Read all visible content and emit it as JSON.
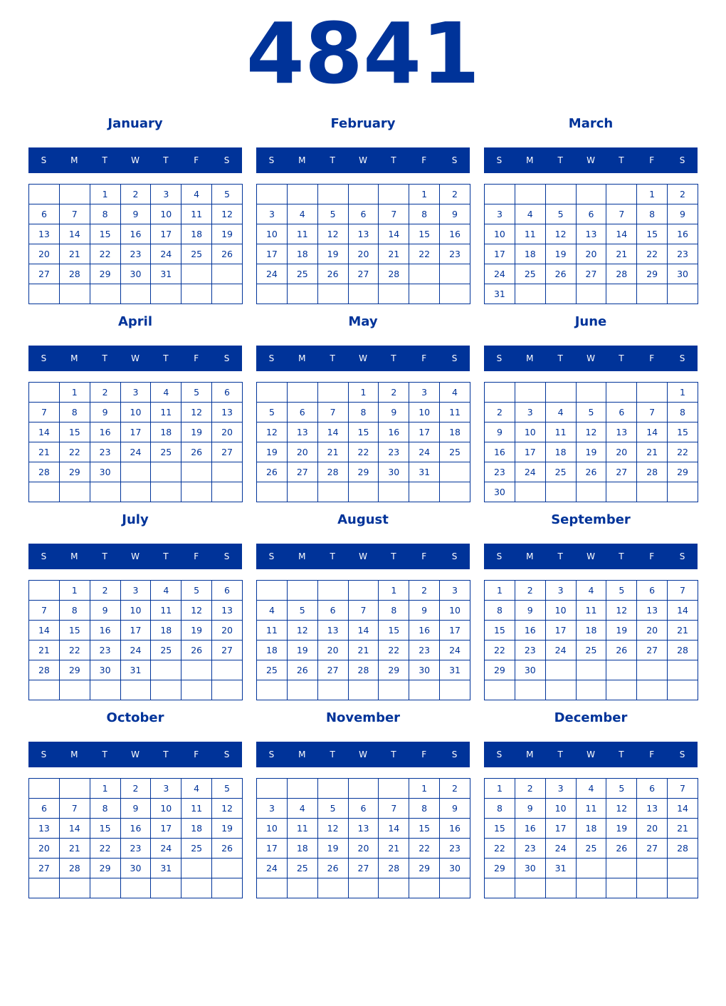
{
  "year": "4841",
  "weekdays": [
    "S",
    "M",
    "T",
    "W",
    "T",
    "F",
    "S"
  ],
  "accent_color": "#003399",
  "months": [
    {
      "name": "January",
      "weeks": [
        [
          null,
          null,
          1,
          2,
          3,
          4,
          5
        ],
        [
          6,
          7,
          8,
          9,
          10,
          11,
          12
        ],
        [
          13,
          14,
          15,
          16,
          17,
          18,
          19
        ],
        [
          20,
          21,
          22,
          23,
          24,
          25,
          26
        ],
        [
          27,
          28,
          29,
          30,
          31,
          null,
          null
        ],
        [
          null,
          null,
          null,
          null,
          null,
          null,
          null
        ]
      ]
    },
    {
      "name": "February",
      "weeks": [
        [
          null,
          null,
          null,
          null,
          null,
          1,
          2
        ],
        [
          3,
          4,
          5,
          6,
          7,
          8,
          9
        ],
        [
          10,
          11,
          12,
          13,
          14,
          15,
          16
        ],
        [
          17,
          18,
          19,
          20,
          21,
          22,
          23
        ],
        [
          24,
          25,
          26,
          27,
          28,
          null,
          null
        ],
        [
          null,
          null,
          null,
          null,
          null,
          null,
          null
        ]
      ]
    },
    {
      "name": "March",
      "weeks": [
        [
          null,
          null,
          null,
          null,
          null,
          1,
          2
        ],
        [
          3,
          4,
          5,
          6,
          7,
          8,
          9
        ],
        [
          10,
          11,
          12,
          13,
          14,
          15,
          16
        ],
        [
          17,
          18,
          19,
          20,
          21,
          22,
          23
        ],
        [
          24,
          25,
          26,
          27,
          28,
          29,
          30
        ],
        [
          31,
          null,
          null,
          null,
          null,
          null,
          null
        ]
      ]
    },
    {
      "name": "April",
      "weeks": [
        [
          null,
          1,
          2,
          3,
          4,
          5,
          6
        ],
        [
          7,
          8,
          9,
          10,
          11,
          12,
          13
        ],
        [
          14,
          15,
          16,
          17,
          18,
          19,
          20
        ],
        [
          21,
          22,
          23,
          24,
          25,
          26,
          27
        ],
        [
          28,
          29,
          30,
          null,
          null,
          null,
          null
        ],
        [
          null,
          null,
          null,
          null,
          null,
          null,
          null
        ]
      ]
    },
    {
      "name": "May",
      "weeks": [
        [
          null,
          null,
          null,
          1,
          2,
          3,
          4
        ],
        [
          5,
          6,
          7,
          8,
          9,
          10,
          11
        ],
        [
          12,
          13,
          14,
          15,
          16,
          17,
          18
        ],
        [
          19,
          20,
          21,
          22,
          23,
          24,
          25
        ],
        [
          26,
          27,
          28,
          29,
          30,
          31,
          null
        ],
        [
          null,
          null,
          null,
          null,
          null,
          null,
          null
        ]
      ]
    },
    {
      "name": "June",
      "weeks": [
        [
          null,
          null,
          null,
          null,
          null,
          null,
          1
        ],
        [
          2,
          3,
          4,
          5,
          6,
          7,
          8
        ],
        [
          9,
          10,
          11,
          12,
          13,
          14,
          15
        ],
        [
          16,
          17,
          18,
          19,
          20,
          21,
          22
        ],
        [
          23,
          24,
          25,
          26,
          27,
          28,
          29
        ],
        [
          30,
          null,
          null,
          null,
          null,
          null,
          null
        ]
      ]
    },
    {
      "name": "July",
      "weeks": [
        [
          null,
          1,
          2,
          3,
          4,
          5,
          6
        ],
        [
          7,
          8,
          9,
          10,
          11,
          12,
          13
        ],
        [
          14,
          15,
          16,
          17,
          18,
          19,
          20
        ],
        [
          21,
          22,
          23,
          24,
          25,
          26,
          27
        ],
        [
          28,
          29,
          30,
          31,
          null,
          null,
          null
        ],
        [
          null,
          null,
          null,
          null,
          null,
          null,
          null
        ]
      ]
    },
    {
      "name": "August",
      "weeks": [
        [
          null,
          null,
          null,
          null,
          1,
          2,
          3
        ],
        [
          4,
          5,
          6,
          7,
          8,
          9,
          10
        ],
        [
          11,
          12,
          13,
          14,
          15,
          16,
          17
        ],
        [
          18,
          19,
          20,
          21,
          22,
          23,
          24
        ],
        [
          25,
          26,
          27,
          28,
          29,
          30,
          31
        ],
        [
          null,
          null,
          null,
          null,
          null,
          null,
          null
        ]
      ]
    },
    {
      "name": "September",
      "weeks": [
        [
          1,
          2,
          3,
          4,
          5,
          6,
          7
        ],
        [
          8,
          9,
          10,
          11,
          12,
          13,
          14
        ],
        [
          15,
          16,
          17,
          18,
          19,
          20,
          21
        ],
        [
          22,
          23,
          24,
          25,
          26,
          27,
          28
        ],
        [
          29,
          30,
          null,
          null,
          null,
          null,
          null
        ],
        [
          null,
          null,
          null,
          null,
          null,
          null,
          null
        ]
      ]
    },
    {
      "name": "October",
      "weeks": [
        [
          null,
          null,
          1,
          2,
          3,
          4,
          5
        ],
        [
          6,
          7,
          8,
          9,
          10,
          11,
          12
        ],
        [
          13,
          14,
          15,
          16,
          17,
          18,
          19
        ],
        [
          20,
          21,
          22,
          23,
          24,
          25,
          26
        ],
        [
          27,
          28,
          29,
          30,
          31,
          null,
          null
        ],
        [
          null,
          null,
          null,
          null,
          null,
          null,
          null
        ]
      ]
    },
    {
      "name": "November",
      "weeks": [
        [
          null,
          null,
          null,
          null,
          null,
          1,
          2
        ],
        [
          3,
          4,
          5,
          6,
          7,
          8,
          9
        ],
        [
          10,
          11,
          12,
          13,
          14,
          15,
          16
        ],
        [
          17,
          18,
          19,
          20,
          21,
          22,
          23
        ],
        [
          24,
          25,
          26,
          27,
          28,
          29,
          30
        ],
        [
          null,
          null,
          null,
          null,
          null,
          null,
          null
        ]
      ]
    },
    {
      "name": "December",
      "weeks": [
        [
          1,
          2,
          3,
          4,
          5,
          6,
          7
        ],
        [
          8,
          9,
          10,
          11,
          12,
          13,
          14
        ],
        [
          15,
          16,
          17,
          18,
          19,
          20,
          21
        ],
        [
          22,
          23,
          24,
          25,
          26,
          27,
          28
        ],
        [
          29,
          30,
          31,
          null,
          null,
          null,
          null
        ],
        [
          null,
          null,
          null,
          null,
          null,
          null,
          null
        ]
      ]
    }
  ]
}
